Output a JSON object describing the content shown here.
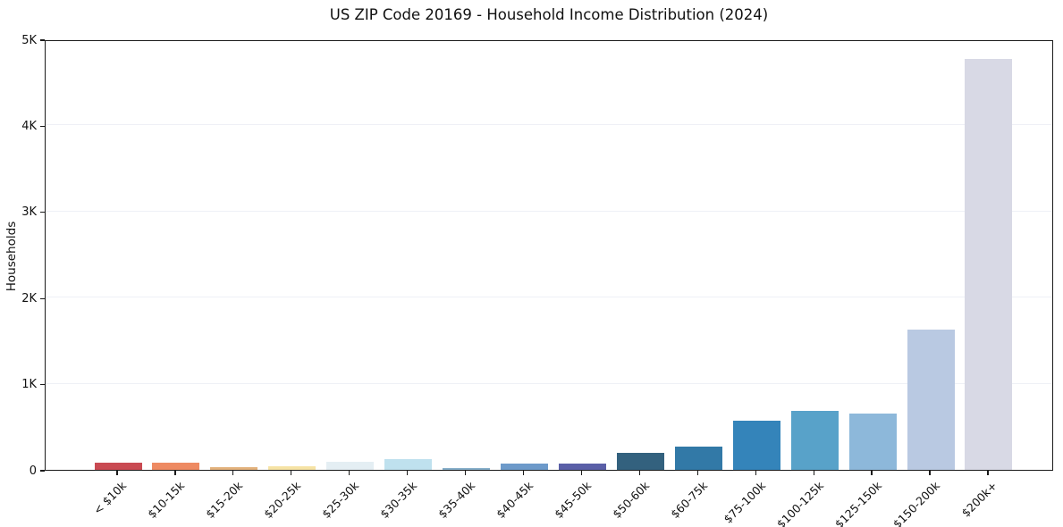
{
  "title": "US ZIP Code 20169 - Household Income Distribution (2024)",
  "chart_data": {
    "type": "bar",
    "title": "US ZIP Code 20169 - Household Income Distribution (2024)",
    "xlabel": "",
    "ylabel": "Households",
    "categories": [
      "< $10k",
      "$10-15k",
      "$15-20k",
      "$20-25k",
      "$25-30k",
      "$30-35k",
      "$35-40k",
      "$40-45k",
      "$45-50k",
      "$50-60k",
      "$60-75k",
      "$75-100k",
      "$100-125k",
      "$125-150k",
      "$150-200k",
      "$200k+"
    ],
    "values": [
      85,
      78,
      30,
      40,
      90,
      120,
      25,
      75,
      70,
      200,
      265,
      570,
      680,
      650,
      1625,
      4770
    ],
    "bar_colors": [
      "#c94a52",
      "#ee8a62",
      "#e3b27d",
      "#f6e3a5",
      "#e4eef3",
      "#bfe1ee",
      "#86aec9",
      "#6d9aca",
      "#5a5fa7",
      "#33617e",
      "#3279a7",
      "#3484ba",
      "#58a2c9",
      "#8db8da",
      "#b9c9e2",
      "#d8d9e5"
    ],
    "ylim": [
      0,
      5000
    ],
    "ytick_values": [
      0,
      1000,
      2000,
      3000,
      4000,
      5000
    ],
    "ytick_labels": [
      "0",
      "1K",
      "2K",
      "3K",
      "4K",
      "5K"
    ],
    "grid": "horizontal-faint",
    "gridline_color": "#eef0f6",
    "legend_position": "none",
    "background_color": "#ffffff",
    "axis_color": "#1a1a1a"
  }
}
